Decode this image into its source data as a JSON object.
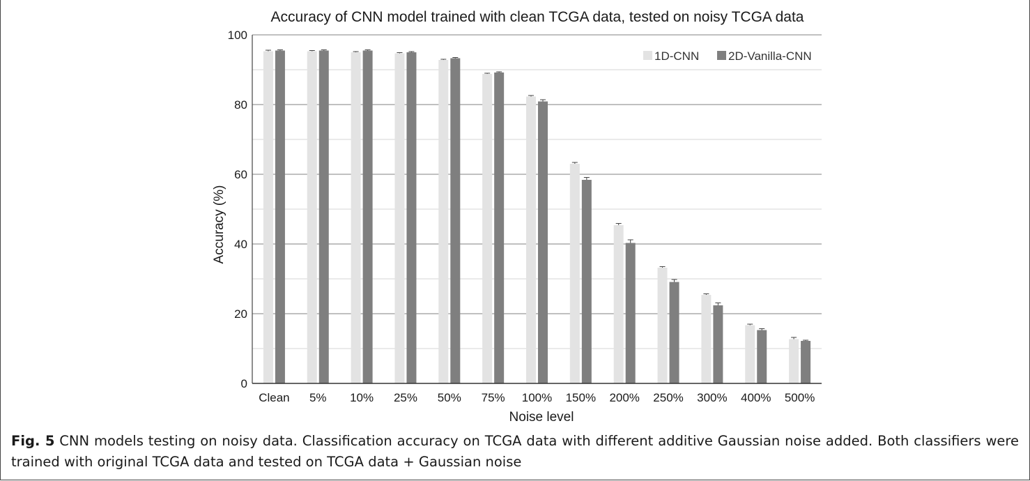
{
  "chart_data": {
    "type": "bar",
    "title": "Accuracy of CNN model trained with clean TCGA data, tested on noisy TCGA data",
    "xlabel": "Noise level",
    "ylabel": "Accuracy (%)",
    "ylim": [
      0,
      100
    ],
    "yticks": [
      0,
      20,
      40,
      60,
      80,
      100
    ],
    "grid": true,
    "legend_position": "top-right",
    "categories": [
      "Clean",
      "5%",
      "10%",
      "25%",
      "50%",
      "75%",
      "100%",
      "150%",
      "200%",
      "250%",
      "300%",
      "400%",
      "500%"
    ],
    "series": [
      {
        "name": "1D-CNN",
        "color": "#e3e3e3",
        "values": [
          95.3,
          95.3,
          95.0,
          94.7,
          92.8,
          88.8,
          82.3,
          63.0,
          45.4,
          33.2,
          25.4,
          16.7,
          12.7
        ],
        "errors": [
          0.3,
          0.2,
          0.2,
          0.2,
          0.2,
          0.2,
          0.3,
          0.4,
          0.5,
          0.3,
          0.3,
          0.3,
          0.5
        ]
      },
      {
        "name": "2D-Vanilla-CNN",
        "color": "#7f7f7f",
        "values": [
          95.5,
          95.5,
          95.5,
          95.0,
          93.3,
          89.2,
          80.9,
          58.4,
          40.3,
          29.1,
          22.4,
          15.3,
          12.2
        ],
        "errors": [
          0.2,
          0.2,
          0.2,
          0.2,
          0.2,
          0.2,
          0.5,
          0.7,
          0.9,
          0.7,
          0.7,
          0.4,
          0.2
        ]
      }
    ]
  },
  "caption": {
    "label": "Fig. 5",
    "text": " CNN models testing on noisy data. Classification accuracy on TCGA data with different additive Gaussian noise added. Both classifiers were trained with original TCGA data and tested on TCGA data + Gaussian noise"
  }
}
